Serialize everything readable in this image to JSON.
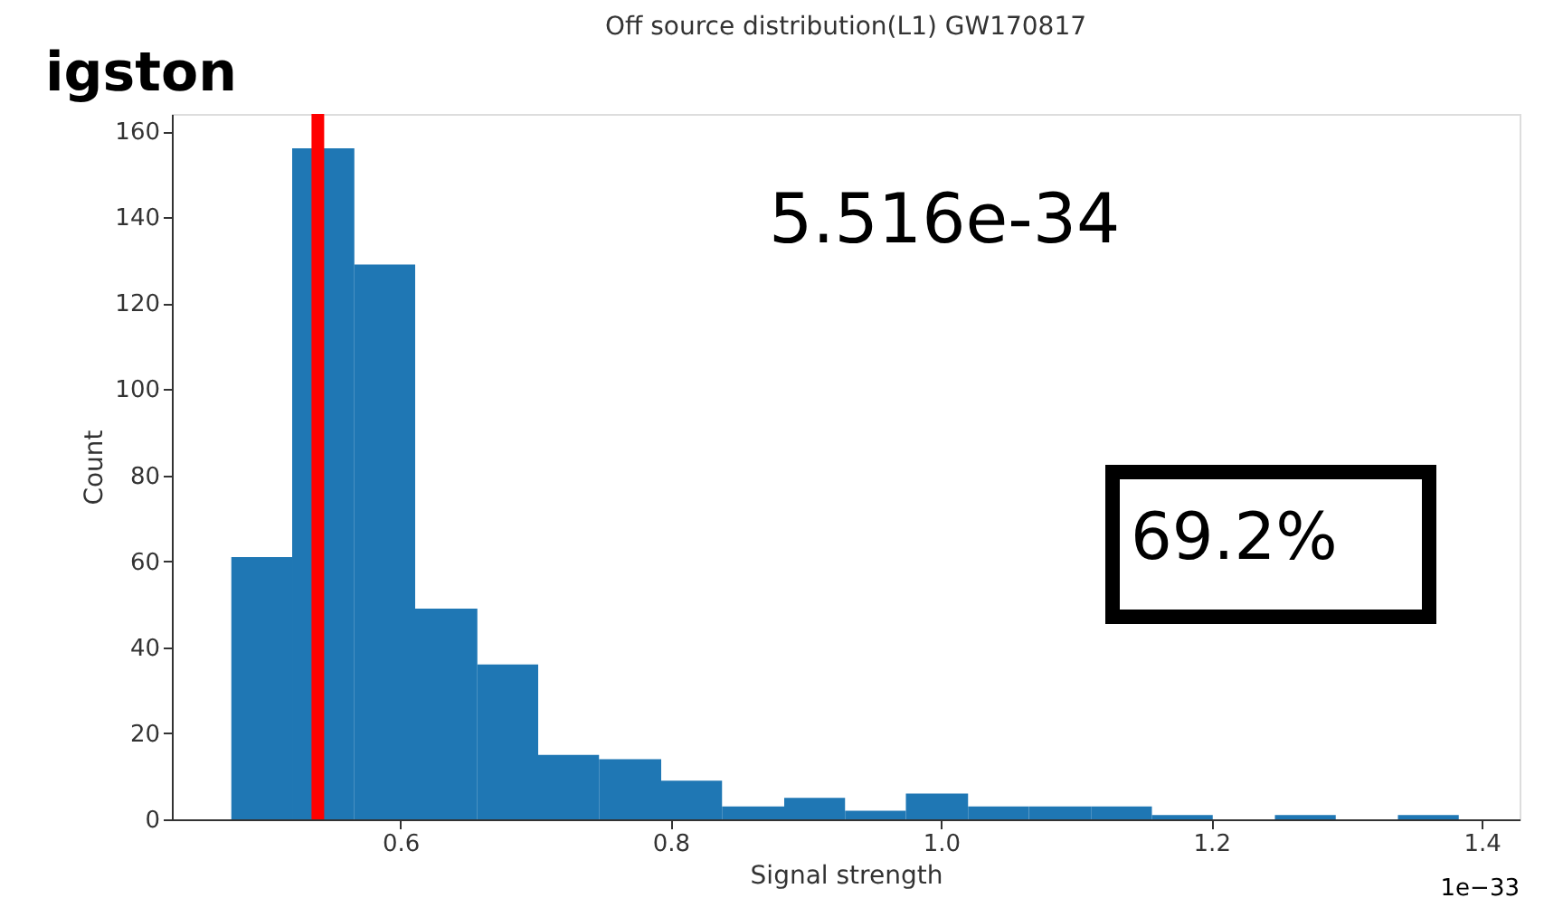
{
  "chart_data": {
    "type": "histogram",
    "title": "Off source distribution(L1) GW170817",
    "xlabel": "Signal strength",
    "ylabel": "Count",
    "bins": [
      0.475,
      0.52,
      0.566,
      0.611,
      0.657,
      0.702,
      0.747,
      0.793,
      0.838,
      0.884,
      0.929,
      0.974,
      1.02,
      1.065,
      1.111,
      1.156,
      1.201,
      1.247,
      1.292,
      1.338,
      1.383
    ],
    "values": [
      61,
      156,
      129,
      49,
      36,
      15,
      14,
      9,
      3,
      5,
      2,
      6,
      3,
      3,
      3,
      1,
      0,
      1,
      0,
      1
    ],
    "color": "#1f77b4",
    "xlim": [
      0.431,
      1.428
    ],
    "xticks": [
      {
        "value": 0.6,
        "label": "0.6"
      },
      {
        "value": 0.8,
        "label": "0.8"
      },
      {
        "value": 1.0,
        "label": "1.0"
      },
      {
        "value": 1.2,
        "label": "1.2"
      },
      {
        "value": 1.4,
        "label": "1.4"
      }
    ],
    "ylim": [
      0,
      164
    ],
    "yticks": [
      0,
      20,
      40,
      60,
      80,
      100,
      120,
      140,
      160
    ],
    "grid": false,
    "ref_lines": [
      {
        "axis": "x",
        "value": 0.539,
        "color": "#ff0000"
      }
    ],
    "annotations": [
      "igston",
      "5.516e-34",
      "69.2%",
      "1e−33"
    ]
  }
}
